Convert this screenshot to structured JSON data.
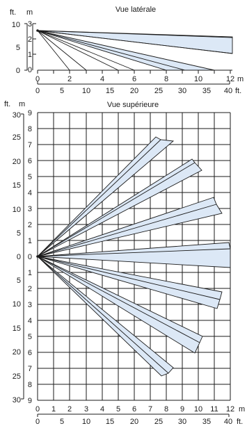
{
  "side": {
    "title": "Vue latérale",
    "ft_unit": "ft.",
    "m_unit": "m",
    "ft_ticks": [
      "10",
      "5",
      "0"
    ],
    "m_ticks": [
      "3",
      "2",
      "1",
      "0"
    ],
    "x_m_ticks": [
      "0",
      "2",
      "4",
      "6",
      "8",
      "10",
      "12"
    ],
    "x_m_unit": "m",
    "x_ft_ticks": [
      "0",
      "5",
      "10",
      "15",
      "20",
      "25",
      "30",
      "35",
      "40"
    ],
    "x_ft_unit": "ft."
  },
  "top": {
    "title": "Vue supérieure",
    "ft_unit": "ft.",
    "m_unit": "m",
    "ft_ticks": [
      "30",
      "25",
      "20",
      "15",
      "10",
      "5",
      "0",
      "5",
      "10",
      "15",
      "20",
      "25",
      "30"
    ],
    "m_ticks": [
      "9",
      "8",
      "7",
      "6",
      "5",
      "4",
      "3",
      "2",
      "1",
      "0",
      "1",
      "2",
      "3",
      "4",
      "5",
      "6",
      "7",
      "8",
      "9"
    ],
    "x_m_ticks": [
      "0",
      "1",
      "2",
      "3",
      "4",
      "5",
      "6",
      "7",
      "8",
      "9",
      "10",
      "11",
      "12"
    ],
    "x_m_unit": "m",
    "x_ft_ticks": [
      "0",
      "5",
      "10",
      "15",
      "20",
      "25",
      "30",
      "35",
      "40"
    ],
    "x_ft_unit": "ft."
  }
}
